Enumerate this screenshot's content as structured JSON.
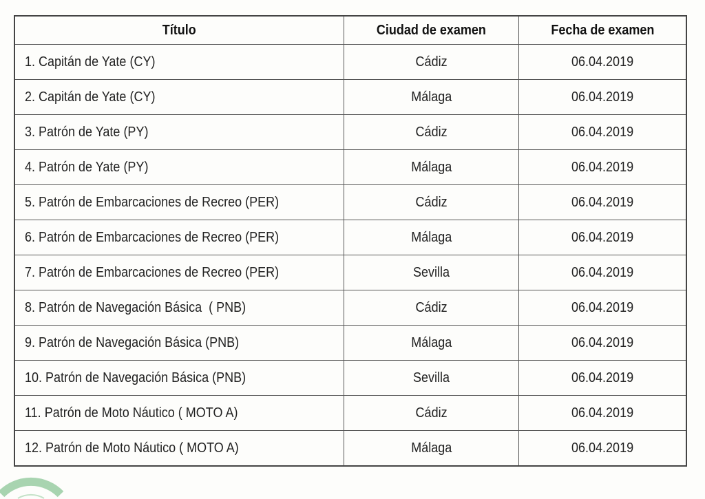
{
  "table": {
    "headers": [
      "Título",
      "Ciudad de examen",
      "Fecha de examen"
    ],
    "rows": [
      [
        "1. Capitán de Yate (CY)",
        "Cádiz",
        "06.04.2019"
      ],
      [
        "2. Capitán de Yate (CY)",
        "Málaga",
        "06.04.2019"
      ],
      [
        "3. Patrón de Yate (PY)",
        "Cádiz",
        "06.04.2019"
      ],
      [
        "4. Patrón de Yate (PY)",
        "Málaga",
        "06.04.2019"
      ],
      [
        "5. Patrón de Embarcaciones de Recreo (PER)",
        "Cádiz",
        "06.04.2019"
      ],
      [
        "6. Patrón de Embarcaciones de Recreo (PER)",
        "Málaga",
        "06.04.2019"
      ],
      [
        "7. Patrón de Embarcaciones de Recreo (PER)",
        "Sevilla",
        "06.04.2019"
      ],
      [
        "8. Patrón de Navegación Básica  ( PNB)",
        "Cádiz",
        "06.04.2019"
      ],
      [
        "9. Patrón de Navegación Básica (PNB)",
        "Málaga",
        "06.04.2019"
      ],
      [
        "10. Patrón de Navegación Básica (PNB)",
        "Sevilla",
        "06.04.2019"
      ],
      [
        "11. Patrón de Moto Náutico ( MOTO A)",
        "Cádiz",
        "06.04.2019"
      ],
      [
        "12. Patrón de Moto Náutico ( MOTO A)",
        "Málaga",
        "06.04.2019"
      ]
    ]
  },
  "logo": {
    "icon": "green-arc-logo",
    "color": "#9fcfa9"
  }
}
